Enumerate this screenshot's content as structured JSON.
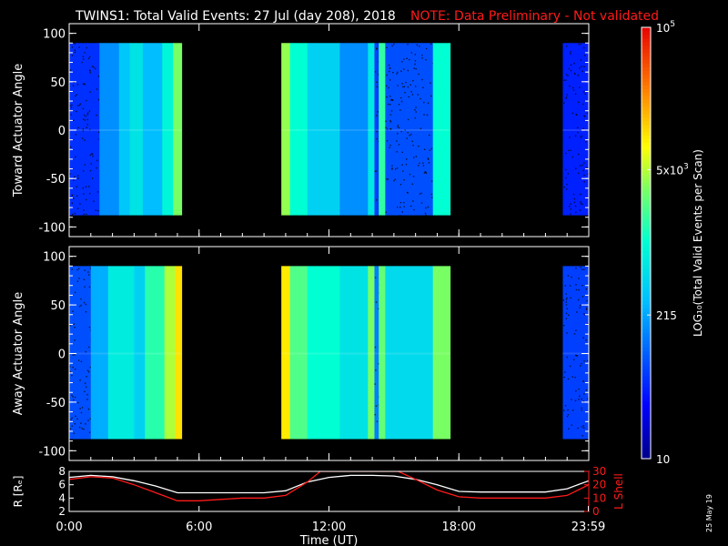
{
  "header": {
    "title": "TWINS1: Total Valid Events: 27 Jul (day 208), 2018",
    "note": "NOTE: Data Preliminary - Not validated"
  },
  "stamp": "25 May 19",
  "colors": {
    "background": "#000000",
    "axes": "#ffffff",
    "note": "#ff1a1a",
    "lshell": "#ff1a1a",
    "radius": "#ffffff"
  },
  "chart_data": [
    {
      "type": "heatmap",
      "name": "toward",
      "ylabel": "Toward Actuator Angle",
      "xlim": [
        0,
        24
      ],
      "ylim": [
        -110,
        110
      ],
      "yticks": [
        -100,
        -50,
        0,
        50,
        100
      ],
      "data_extent": {
        "x": [
          [
            0,
            5.2
          ],
          [
            9.8,
            17.6
          ],
          [
            22.8,
            24
          ]
        ],
        "y": [
          -88,
          90
        ]
      },
      "columns": [
        {
          "x0": 0.0,
          "x1": 1.4,
          "level": 0.18
        },
        {
          "x0": 1.4,
          "x1": 2.3,
          "level": 0.3
        },
        {
          "x0": 2.3,
          "x1": 2.8,
          "level": 0.38
        },
        {
          "x0": 2.8,
          "x1": 3.4,
          "level": 0.44
        },
        {
          "x0": 3.4,
          "x1": 4.3,
          "level": 0.36
        },
        {
          "x0": 4.3,
          "x1": 4.8,
          "level": 0.48
        },
        {
          "x0": 4.8,
          "x1": 5.2,
          "level": 0.62
        },
        {
          "x0": 9.8,
          "x1": 10.2,
          "level": 0.64
        },
        {
          "x0": 10.2,
          "x1": 11.0,
          "level": 0.5
        },
        {
          "x0": 11.0,
          "x1": 12.5,
          "level": 0.4
        },
        {
          "x0": 12.5,
          "x1": 13.8,
          "level": 0.3
        },
        {
          "x0": 13.8,
          "x1": 14.1,
          "level": 0.45
        },
        {
          "x0": 14.1,
          "x1": 14.3,
          "level": 0.2
        },
        {
          "x0": 14.3,
          "x1": 14.6,
          "level": 0.55
        },
        {
          "x0": 14.6,
          "x1": 16.8,
          "level": 0.22
        },
        {
          "x0": 16.8,
          "x1": 17.6,
          "level": 0.5
        },
        {
          "x0": 22.8,
          "x1": 24.0,
          "level": 0.16
        }
      ]
    },
    {
      "type": "heatmap",
      "name": "away",
      "ylabel": "Away Actuator Angle",
      "xlim": [
        0,
        24
      ],
      "ylim": [
        -110,
        110
      ],
      "yticks": [
        -100,
        -50,
        0,
        50,
        100
      ],
      "data_extent": {
        "x": [
          [
            0,
            5.2
          ],
          [
            9.8,
            17.6
          ],
          [
            22.8,
            24
          ]
        ],
        "y": [
          -88,
          90
        ]
      },
      "columns": [
        {
          "x0": 0.0,
          "x1": 1.0,
          "level": 0.22
        },
        {
          "x0": 1.0,
          "x1": 1.8,
          "level": 0.34
        },
        {
          "x0": 1.8,
          "x1": 3.0,
          "level": 0.46
        },
        {
          "x0": 3.0,
          "x1": 3.5,
          "level": 0.4
        },
        {
          "x0": 3.5,
          "x1": 4.4,
          "level": 0.54
        },
        {
          "x0": 4.4,
          "x1": 4.9,
          "level": 0.66
        },
        {
          "x0": 4.9,
          "x1": 5.2,
          "level": 0.75
        },
        {
          "x0": 9.8,
          "x1": 10.2,
          "level": 0.74
        },
        {
          "x0": 10.2,
          "x1": 11.0,
          "level": 0.58
        },
        {
          "x0": 11.0,
          "x1": 12.5,
          "level": 0.5
        },
        {
          "x0": 12.5,
          "x1": 13.8,
          "level": 0.44
        },
        {
          "x0": 13.8,
          "x1": 14.1,
          "level": 0.62
        },
        {
          "x0": 14.1,
          "x1": 14.3,
          "level": 0.28
        },
        {
          "x0": 14.3,
          "x1": 14.6,
          "level": 0.6
        },
        {
          "x0": 14.6,
          "x1": 16.8,
          "level": 0.42
        },
        {
          "x0": 16.8,
          "x1": 17.6,
          "level": 0.62
        },
        {
          "x0": 22.8,
          "x1": 24.0,
          "level": 0.2
        }
      ]
    },
    {
      "type": "line",
      "name": "orbit",
      "ylabel": "R [Rₑ]",
      "ylim": [
        2,
        8
      ],
      "yticks": [
        2,
        4,
        6,
        8
      ],
      "y2label": "L Shell",
      "y2lim": [
        0,
        30
      ],
      "y2ticks": [
        0,
        10,
        20,
        30
      ],
      "xlabel": "Time (UT)",
      "xlim": [
        0,
        24
      ],
      "xticks": [
        {
          "x": 0,
          "label": "0:00"
        },
        {
          "x": 6,
          "label": "6:00"
        },
        {
          "x": 12,
          "label": "12:00"
        },
        {
          "x": 18,
          "label": "18:00"
        },
        {
          "x": 23.98,
          "label": "23:59"
        }
      ],
      "series": [
        {
          "axis": "left",
          "color": "#ffffff",
          "x": [
            0,
            1,
            2,
            3,
            4,
            5,
            6,
            7,
            8,
            9,
            10,
            11,
            12,
            13,
            14,
            15,
            16,
            17,
            18,
            19,
            20,
            21,
            22,
            23,
            24
          ],
          "y": [
            7.1,
            7.4,
            7.2,
            6.6,
            5.8,
            4.8,
            4.8,
            4.8,
            4.8,
            4.8,
            5.1,
            6.4,
            7.1,
            7.4,
            7.4,
            7.3,
            6.8,
            6.0,
            5.0,
            4.9,
            4.9,
            4.9,
            4.9,
            5.4,
            6.6
          ]
        },
        {
          "axis": "right",
          "color": "#ff1a1a",
          "x": [
            0,
            1,
            2,
            3,
            4,
            5,
            6,
            7,
            8,
            9,
            10,
            11,
            11.6,
            15.2,
            16,
            17,
            18,
            19,
            20,
            21,
            22,
            23,
            24
          ],
          "y": [
            24,
            26,
            25,
            20,
            14,
            8,
            8,
            9,
            10,
            10,
            12,
            22,
            30,
            30,
            24,
            16,
            11,
            10,
            10,
            10,
            10,
            12,
            20
          ]
        }
      ]
    }
  ],
  "colorbar": {
    "ylabel": "LOG₁₀(Total Valid Events per Scan)",
    "labels": [
      {
        "text": "10",
        "frac": 0.0,
        "exp": ""
      },
      {
        "text": "215",
        "frac": 0.333,
        "exp": ""
      },
      {
        "text": "5x10",
        "frac": 0.67,
        "exp": "3"
      },
      {
        "text": "10",
        "frac": 1.0,
        "exp": "5"
      }
    ]
  }
}
